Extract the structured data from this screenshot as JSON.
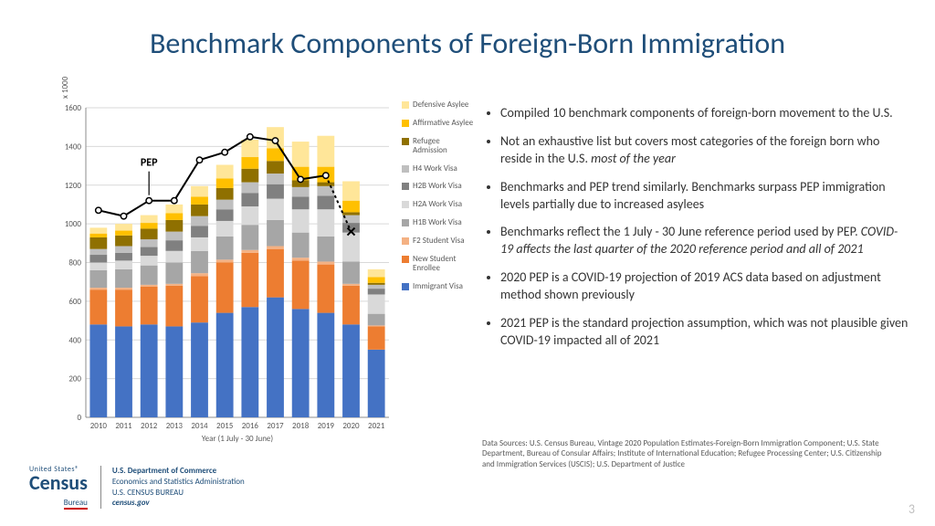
{
  "title": "Benchmark Components of Foreign-Born Immigration",
  "chart": {
    "type": "stacked-bar-with-line",
    "y_multiplier_label": "x 1000",
    "x_axis_label": "Year (1 July - 30 June)",
    "ylim": [
      0,
      1600
    ],
    "ytick_step": 200,
    "yticks": [
      0,
      200,
      400,
      600,
      800,
      1000,
      1200,
      1400,
      1600
    ],
    "categories": [
      "2010",
      "2011",
      "2012",
      "2013",
      "2014",
      "2015",
      "2016",
      "2017",
      "2018",
      "2019",
      "2020",
      "2021"
    ],
    "grid_color": "#d9d9d9",
    "axis_color": "#8c8c8c",
    "background_color": "#ffffff",
    "bar_width_ratio": 0.68,
    "series": [
      {
        "key": "immigrant_visa",
        "label": "Immigrant Visa",
        "color": "#4472c4",
        "values": [
          480,
          470,
          480,
          470,
          490,
          540,
          570,
          620,
          560,
          540,
          480,
          350
        ]
      },
      {
        "key": "new_student",
        "label": "New Student Enrollee",
        "color": "#ed7d31",
        "values": [
          180,
          190,
          195,
          210,
          240,
          260,
          280,
          250,
          250,
          250,
          200,
          120
        ]
      },
      {
        "key": "f2_student",
        "label": "F2 Student Visa",
        "color": "#f4b183",
        "values": [
          10,
          10,
          10,
          10,
          15,
          15,
          15,
          15,
          15,
          15,
          10,
          5
        ]
      },
      {
        "key": "h1b",
        "label": "H1B Work Visa",
        "color": "#a6a6a6",
        "values": [
          90,
          95,
          100,
          110,
          115,
          120,
          130,
          135,
          130,
          130,
          115,
          60
        ]
      },
      {
        "key": "h2a",
        "label": "H2A Work Visa",
        "color": "#d9d9d9",
        "values": [
          40,
          45,
          50,
          60,
          70,
          80,
          95,
          110,
          120,
          140,
          150,
          100
        ]
      },
      {
        "key": "h2b",
        "label": "H2B Work Visa",
        "color": "#808080",
        "values": [
          40,
          40,
          45,
          55,
          60,
          60,
          70,
          75,
          65,
          70,
          50,
          30
        ]
      },
      {
        "key": "h4",
        "label": "H4 Work Visa",
        "color": "#bfbfbf",
        "values": [
          30,
          35,
          40,
          45,
          50,
          50,
          55,
          55,
          50,
          50,
          40,
          20
        ]
      },
      {
        "key": "refugee",
        "label": "Refugee Admission",
        "color": "#8f7000",
        "values": [
          60,
          55,
          55,
          60,
          60,
          60,
          70,
          65,
          35,
          20,
          15,
          10
        ]
      },
      {
        "key": "aff_asylee",
        "label": "Affirmative Asylee",
        "color": "#ffc000",
        "values": [
          20,
          25,
          30,
          35,
          40,
          50,
          60,
          65,
          70,
          80,
          60,
          30
        ]
      },
      {
        "key": "def_asylee",
        "label": "Defensive Asylee",
        "color": "#ffe699",
        "values": [
          30,
          35,
          40,
          45,
          55,
          70,
          90,
          110,
          130,
          160,
          100,
          40
        ]
      }
    ],
    "pep_line": {
      "label": "PEP",
      "color": "#000000",
      "marker": "circle-open",
      "dash_after_index": 9,
      "values": [
        1070,
        1040,
        1120,
        1120,
        1330,
        1370,
        1450,
        1430,
        1230,
        1250,
        960,
        null
      ],
      "end_marker": "x"
    }
  },
  "legend_order": [
    "def_asylee",
    "aff_asylee",
    "refugee",
    "h4",
    "h2b",
    "h2a",
    "h1b",
    "f2_student",
    "new_student",
    "immigrant_visa"
  ],
  "bullets": [
    {
      "text": "Compiled 10 benchmark components of foreign-born movement to the U.S."
    },
    {
      "text": "Not an exhaustive list but covers most categories of the foreign born who reside in the U.S. ",
      "em": "most of the year"
    },
    {
      "text": "Benchmarks and PEP trend similarly. Benchmarks surpass PEP immigration levels partially due to increased asylees"
    },
    {
      "text": "Benchmarks reflect the 1 July - 30 June reference period used by PEP.  ",
      "em": "COVID-19 affects the last quarter of the 2020 reference period and all of 2021"
    },
    {
      "text": "2020 PEP is a COVID-19 projection of 2019 ACS data based on adjustment method shown previously"
    },
    {
      "text": "2021 PEP is the standard projection assumption, which was not plausible given COVID-19 impacted all of 2021"
    }
  ],
  "data_sources": "Data Sources: U.S. Census Bureau, Vintage 2020 Population Estimates-Foreign-Born Immigration Component; U.S. State Department, Bureau of Consular Affairs; Institute of International Education; Refugee Processing Center; U.S. Citizenship and Immigration Services (USCIS); U.S. Department of Justice",
  "page_number": "3",
  "footer": {
    "logo_small": "United States®",
    "logo_big": "Census",
    "logo_bureau": "Bureau",
    "dept_line1": "U.S. Department of Commerce",
    "dept_line2": "Economics and Statistics Administration",
    "dept_line3": "U.S. CENSUS BUREAU",
    "dept_line4": "census.gov"
  }
}
